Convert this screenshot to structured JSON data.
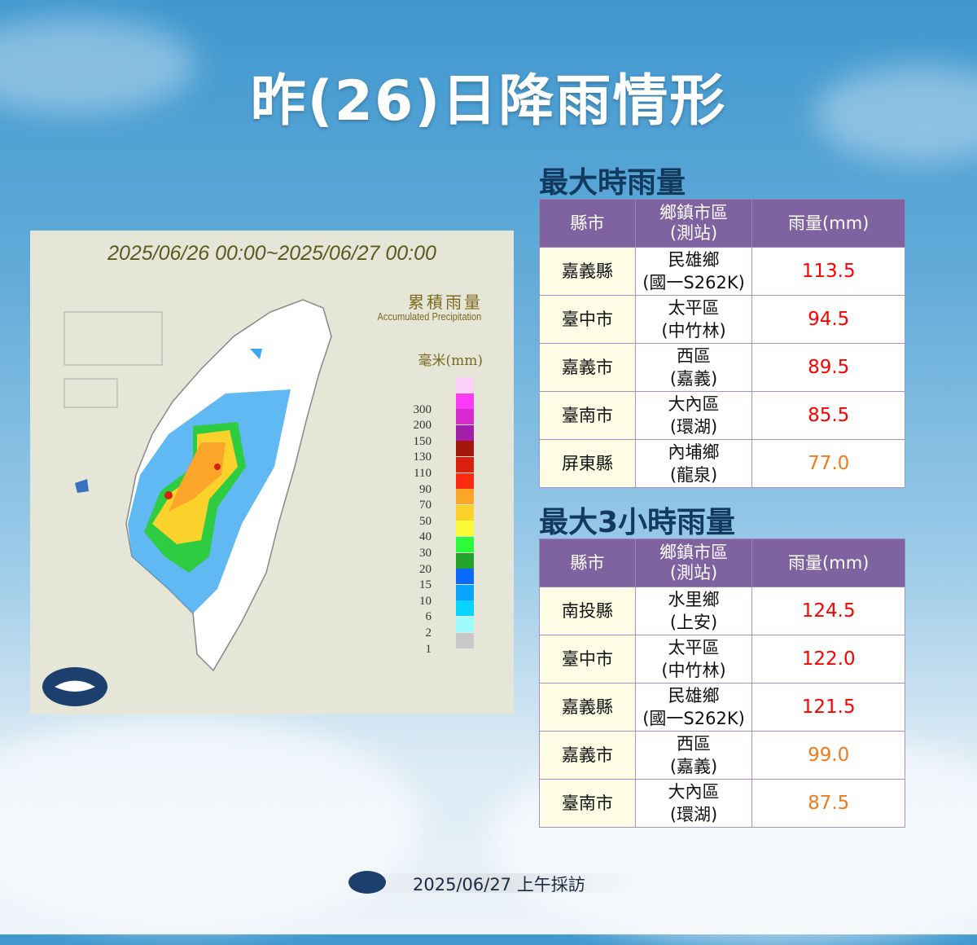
{
  "title": "昨(26)日降雨情形",
  "map": {
    "date_range": "2025/06/26 00:00~2025/06/27 00:00",
    "legend_title": "累積雨量",
    "legend_subtitle": "Accumulated Precipitation",
    "legend_unit": "毫米(mm)",
    "legend": [
      {
        "v": "",
        "c": "#fdd0fb"
      },
      {
        "v": "300",
        "c": "#fb3cf5"
      },
      {
        "v": "200",
        "c": "#d72ccd"
      },
      {
        "v": "150",
        "c": "#a41fa7"
      },
      {
        "v": "130",
        "c": "#a3160c"
      },
      {
        "v": "110",
        "c": "#d7200e"
      },
      {
        "v": "90",
        "c": "#fb2a10"
      },
      {
        "v": "70",
        "c": "#fba628"
      },
      {
        "v": "50",
        "c": "#fbd22c"
      },
      {
        "v": "40",
        "c": "#fbfb3a"
      },
      {
        "v": "30",
        "c": "#2cfb3c"
      },
      {
        "v": "20",
        "c": "#24a22a"
      },
      {
        "v": "15",
        "c": "#0a6afb"
      },
      {
        "v": "10",
        "c": "#0aa2fb"
      },
      {
        "v": "6",
        "c": "#06d4fb"
      },
      {
        "v": "2",
        "c": "#9efbfb"
      },
      {
        "v": "1",
        "c": "#c8c8c8"
      }
    ]
  },
  "tables": [
    {
      "title": "最大時雨量",
      "headers": [
        "縣市",
        "鄉鎮市區\n(測站)",
        "雨量(mm)"
      ],
      "rows": [
        [
          "嘉義縣",
          "民雄鄉\n(國一S262K)",
          "113.5",
          "red"
        ],
        [
          "臺中市",
          "太平區\n(中竹林)",
          "94.5",
          "red"
        ],
        [
          "嘉義市",
          "西區\n(嘉義)",
          "89.5",
          "red"
        ],
        [
          "臺南市",
          "大內區\n(環湖)",
          "85.5",
          "red"
        ],
        [
          "屏東縣",
          "內埔鄉\n(龍泉)",
          "77.0",
          "org"
        ]
      ]
    },
    {
      "title": "最大3小時雨量",
      "headers": [
        "縣市",
        "鄉鎮市區\n(測站)",
        "雨量(mm)"
      ],
      "rows": [
        [
          "南投縣",
          "水里鄉\n(上安)",
          "124.5",
          "red"
        ],
        [
          "臺中市",
          "太平區\n(中竹林)",
          "122.0",
          "red"
        ],
        [
          "嘉義縣",
          "民雄鄉\n(國一S262K)",
          "121.5",
          "red"
        ],
        [
          "嘉義市",
          "西區\n(嘉義)",
          "99.0",
          "org"
        ],
        [
          "臺南市",
          "大內區\n(環湖)",
          "87.5",
          "org"
        ]
      ]
    }
  ],
  "footer": "2025/06/27 上午採訪"
}
